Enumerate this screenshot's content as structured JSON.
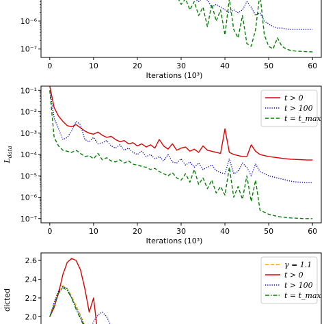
{
  "chart_data": [
    {
      "type": "line",
      "panel": "top",
      "xlabel": "Iterations (10³)",
      "ylabel": "",
      "xlim": [
        -2,
        62
      ],
      "ylim_log10": [
        -7.3,
        -5.0
      ],
      "x_ticks": [
        0,
        10,
        20,
        30,
        40,
        50,
        60
      ],
      "y_ticks": [
        {
          "exp": -6,
          "label": "10⁻⁶"
        },
        {
          "exp": -7,
          "label": "10⁻⁷"
        }
      ],
      "series": [
        {
          "color": "#0000cc",
          "dash": "dotted",
          "x": [
            30,
            31,
            32,
            33,
            34,
            35,
            36,
            37,
            38,
            39,
            40,
            41,
            42,
            43,
            44,
            45,
            46,
            47,
            48,
            49,
            50,
            51,
            52,
            53,
            54,
            55,
            56,
            57,
            58,
            59,
            60
          ],
          "log10y": [
            -5.0,
            -5.1,
            -5.2,
            -5.2,
            -5.3,
            -5.15,
            -5.25,
            -5.5,
            -5.4,
            -5.5,
            -5.6,
            -5.7,
            -5.6,
            -5.7,
            -5.6,
            -5.3,
            -5.5,
            -5.8,
            -5.7,
            -6.0,
            -6.1,
            -6.2,
            -6.25,
            -6.25,
            -6.28,
            -6.3,
            -6.3,
            -6.3,
            -6.3,
            -6.3,
            -6.3
          ]
        },
        {
          "color": "#008000",
          "dash": "dashed",
          "x": [
            25,
            26,
            27,
            28,
            29,
            30,
            31,
            32,
            33,
            34,
            35,
            36,
            37,
            38,
            39,
            40,
            41,
            42,
            43,
            44,
            45,
            46,
            47,
            48,
            49,
            50,
            51,
            52,
            53,
            54,
            55,
            56,
            57,
            58,
            59,
            60
          ],
          "log10y": [
            -5.0,
            -5.1,
            -5.05,
            -5.0,
            -5.1,
            -5.4,
            -5.2,
            -5.6,
            -5.3,
            -5.8,
            -5.5,
            -6.2,
            -5.4,
            -6.0,
            -5.6,
            -6.5,
            -5.2,
            -6.3,
            -6.6,
            -5.8,
            -6.8,
            -6.9,
            -6.3,
            -5.0,
            -6.5,
            -6.9,
            -7.0,
            -6.6,
            -6.9,
            -7.0,
            -7.05,
            -7.07,
            -7.08,
            -7.09,
            -7.1,
            -7.1
          ]
        }
      ]
    },
    {
      "type": "line",
      "panel": "middle",
      "xlabel": "Iterations (10³)",
      "ylabel": "L_data",
      "ylabel_main": "L",
      "ylabel_sub": "data",
      "xlim": [
        -2,
        62
      ],
      "ylim_log10": [
        -7.2,
        -0.8
      ],
      "x_ticks": [
        0,
        10,
        20,
        30,
        40,
        50,
        60
      ],
      "y_ticks": [
        {
          "exp": -1,
          "label": "10⁻¹"
        },
        {
          "exp": -2,
          "label": "10⁻²"
        },
        {
          "exp": -3,
          "label": "10⁻³"
        },
        {
          "exp": -4,
          "label": "10⁻⁴"
        },
        {
          "exp": -5,
          "label": "10⁻⁵"
        },
        {
          "exp": -6,
          "label": "10⁻⁶"
        },
        {
          "exp": -7,
          "label": "10⁻⁷"
        }
      ],
      "legend_position": "top-right",
      "series": [
        {
          "name": "t > 0",
          "color": "#dd0000",
          "dash": "solid",
          "x": [
            0,
            1,
            2,
            3,
            4,
            5,
            6,
            7,
            8,
            9,
            10,
            11,
            12,
            13,
            14,
            15,
            16,
            17,
            18,
            19,
            20,
            21,
            22,
            23,
            24,
            25,
            26,
            27,
            28,
            29,
            30,
            31,
            32,
            33,
            34,
            35,
            36,
            37,
            38,
            39,
            40,
            41,
            42,
            43,
            44,
            45,
            46,
            47,
            48,
            49,
            50,
            51,
            52,
            53,
            54,
            55,
            56,
            57,
            58,
            59,
            60
          ],
          "log10y": [
            -0.8,
            -1.8,
            -2.2,
            -2.45,
            -2.65,
            -2.7,
            -2.6,
            -2.75,
            -2.9,
            -3.0,
            -3.05,
            -2.95,
            -3.1,
            -3.2,
            -3.15,
            -3.3,
            -3.4,
            -3.35,
            -3.5,
            -3.45,
            -3.6,
            -3.5,
            -3.65,
            -3.55,
            -3.7,
            -3.3,
            -3.6,
            -3.75,
            -3.5,
            -3.8,
            -3.7,
            -3.65,
            -3.85,
            -3.75,
            -3.9,
            -3.6,
            -3.8,
            -3.85,
            -3.9,
            -3.95,
            -2.8,
            -3.9,
            -4.0,
            -4.05,
            -4.1,
            -4.1,
            -3.55,
            -3.85,
            -4.0,
            -4.05,
            -4.1,
            -4.12,
            -4.15,
            -4.18,
            -4.2,
            -4.22,
            -4.23,
            -4.24,
            -4.25,
            -4.26,
            -4.26
          ]
        },
        {
          "name": "t > 100",
          "color": "#0000cc",
          "dash": "dotted",
          "x": [
            0,
            1,
            2,
            3,
            4,
            5,
            6,
            7,
            8,
            9,
            10,
            11,
            12,
            13,
            14,
            15,
            16,
            17,
            18,
            19,
            20,
            21,
            22,
            23,
            24,
            25,
            26,
            27,
            28,
            29,
            30,
            31,
            32,
            33,
            34,
            35,
            36,
            37,
            38,
            39,
            40,
            41,
            42,
            43,
            44,
            45,
            46,
            47,
            48,
            49,
            50,
            51,
            52,
            53,
            54,
            55,
            56,
            57,
            58,
            59,
            60
          ],
          "log10y": [
            -1.0,
            -2.3,
            -2.8,
            -3.3,
            -3.2,
            -2.9,
            -2.45,
            -2.6,
            -3.3,
            -3.4,
            -3.2,
            -3.5,
            -3.45,
            -3.35,
            -3.6,
            -3.7,
            -3.55,
            -3.8,
            -3.7,
            -3.9,
            -4.0,
            -3.85,
            -4.1,
            -4.0,
            -4.2,
            -4.1,
            -4.3,
            -4.0,
            -4.35,
            -4.4,
            -4.2,
            -4.5,
            -4.35,
            -4.6,
            -4.4,
            -4.7,
            -4.6,
            -4.5,
            -4.75,
            -4.85,
            -4.9,
            -4.2,
            -4.9,
            -4.8,
            -4.4,
            -4.6,
            -5.0,
            -4.45,
            -4.8,
            -4.9,
            -5.0,
            -5.05,
            -5.1,
            -5.15,
            -5.2,
            -5.25,
            -5.28,
            -5.3,
            -5.3,
            -5.32,
            -5.32
          ]
        },
        {
          "name": "t = t_max",
          "color": "#008000",
          "dash": "dashed",
          "x": [
            0,
            1,
            2,
            3,
            4,
            5,
            6,
            7,
            8,
            9,
            10,
            11,
            12,
            13,
            14,
            15,
            16,
            17,
            18,
            19,
            20,
            21,
            22,
            23,
            24,
            25,
            26,
            27,
            28,
            29,
            30,
            31,
            32,
            33,
            34,
            35,
            36,
            37,
            38,
            39,
            40,
            41,
            42,
            43,
            44,
            45,
            46,
            47,
            48,
            49,
            50,
            51,
            52,
            53,
            54,
            55,
            56,
            57,
            58,
            59,
            60
          ],
          "log10y": [
            -1.0,
            -3.2,
            -3.6,
            -3.8,
            -3.85,
            -3.9,
            -3.8,
            -3.95,
            -4.1,
            -4.05,
            -4.2,
            -3.95,
            -4.25,
            -4.15,
            -4.3,
            -4.35,
            -4.25,
            -4.4,
            -4.3,
            -4.45,
            -4.5,
            -4.55,
            -4.6,
            -4.7,
            -4.65,
            -4.8,
            -4.9,
            -5.0,
            -4.85,
            -5.1,
            -5.2,
            -4.9,
            -5.3,
            -4.7,
            -5.4,
            -5.1,
            -5.6,
            -5.2,
            -5.8,
            -5.5,
            -5.9,
            -4.6,
            -6.0,
            -5.5,
            -6.1,
            -5.0,
            -6.2,
            -5.2,
            -6.6,
            -6.7,
            -6.8,
            -6.85,
            -6.9,
            -6.93,
            -6.95,
            -6.97,
            -6.98,
            -6.99,
            -7.0,
            -7.0,
            -7.0
          ]
        }
      ]
    },
    {
      "type": "line",
      "panel": "bottom",
      "ylabel": "Predicted",
      "ylabel_visible": "dicted",
      "xlim": [
        -2,
        62
      ],
      "ylim": [
        1.85,
        2.68
      ],
      "y_ticks": [
        2.0,
        2.2,
        2.4,
        2.6
      ],
      "legend_position": "top-right",
      "series": [
        {
          "name": "γ = 1.1",
          "color": "#ffa500",
          "dash": "dashed",
          "x": [
            0,
            1,
            2,
            3,
            4,
            5,
            6,
            7,
            8,
            9
          ],
          "y": [
            2.0,
            2.15,
            2.28,
            2.33,
            2.3,
            2.22,
            2.12,
            2.02,
            1.9,
            1.8
          ]
        },
        {
          "name": "t > 0",
          "color": "#dd0000",
          "dash": "solid",
          "x": [
            0,
            1,
            2,
            3,
            4,
            5,
            6,
            7,
            8,
            9,
            10,
            11
          ],
          "y": [
            2.0,
            2.1,
            2.25,
            2.45,
            2.58,
            2.62,
            2.6,
            2.5,
            2.3,
            2.05,
            2.2,
            1.8
          ]
        },
        {
          "name": "t > 100",
          "color": "#0000cc",
          "dash": "dotted",
          "x": [
            0,
            1,
            2,
            3,
            4,
            5,
            6,
            7,
            8,
            9,
            10,
            11,
            12,
            13,
            14,
            15
          ],
          "y": [
            2.0,
            2.15,
            2.27,
            2.32,
            2.3,
            2.2,
            2.1,
            2.0,
            1.9,
            1.85,
            1.95,
            2.02,
            2.05,
            2.0,
            1.9,
            1.8
          ]
        },
        {
          "name": "t = t_max",
          "color": "#008000",
          "dash": "dashdot",
          "x": [
            0,
            1,
            2,
            3,
            4,
            5,
            6,
            7,
            8,
            9
          ],
          "y": [
            2.0,
            2.12,
            2.25,
            2.31,
            2.28,
            2.2,
            2.08,
            1.98,
            1.88,
            1.8
          ]
        }
      ]
    }
  ]
}
